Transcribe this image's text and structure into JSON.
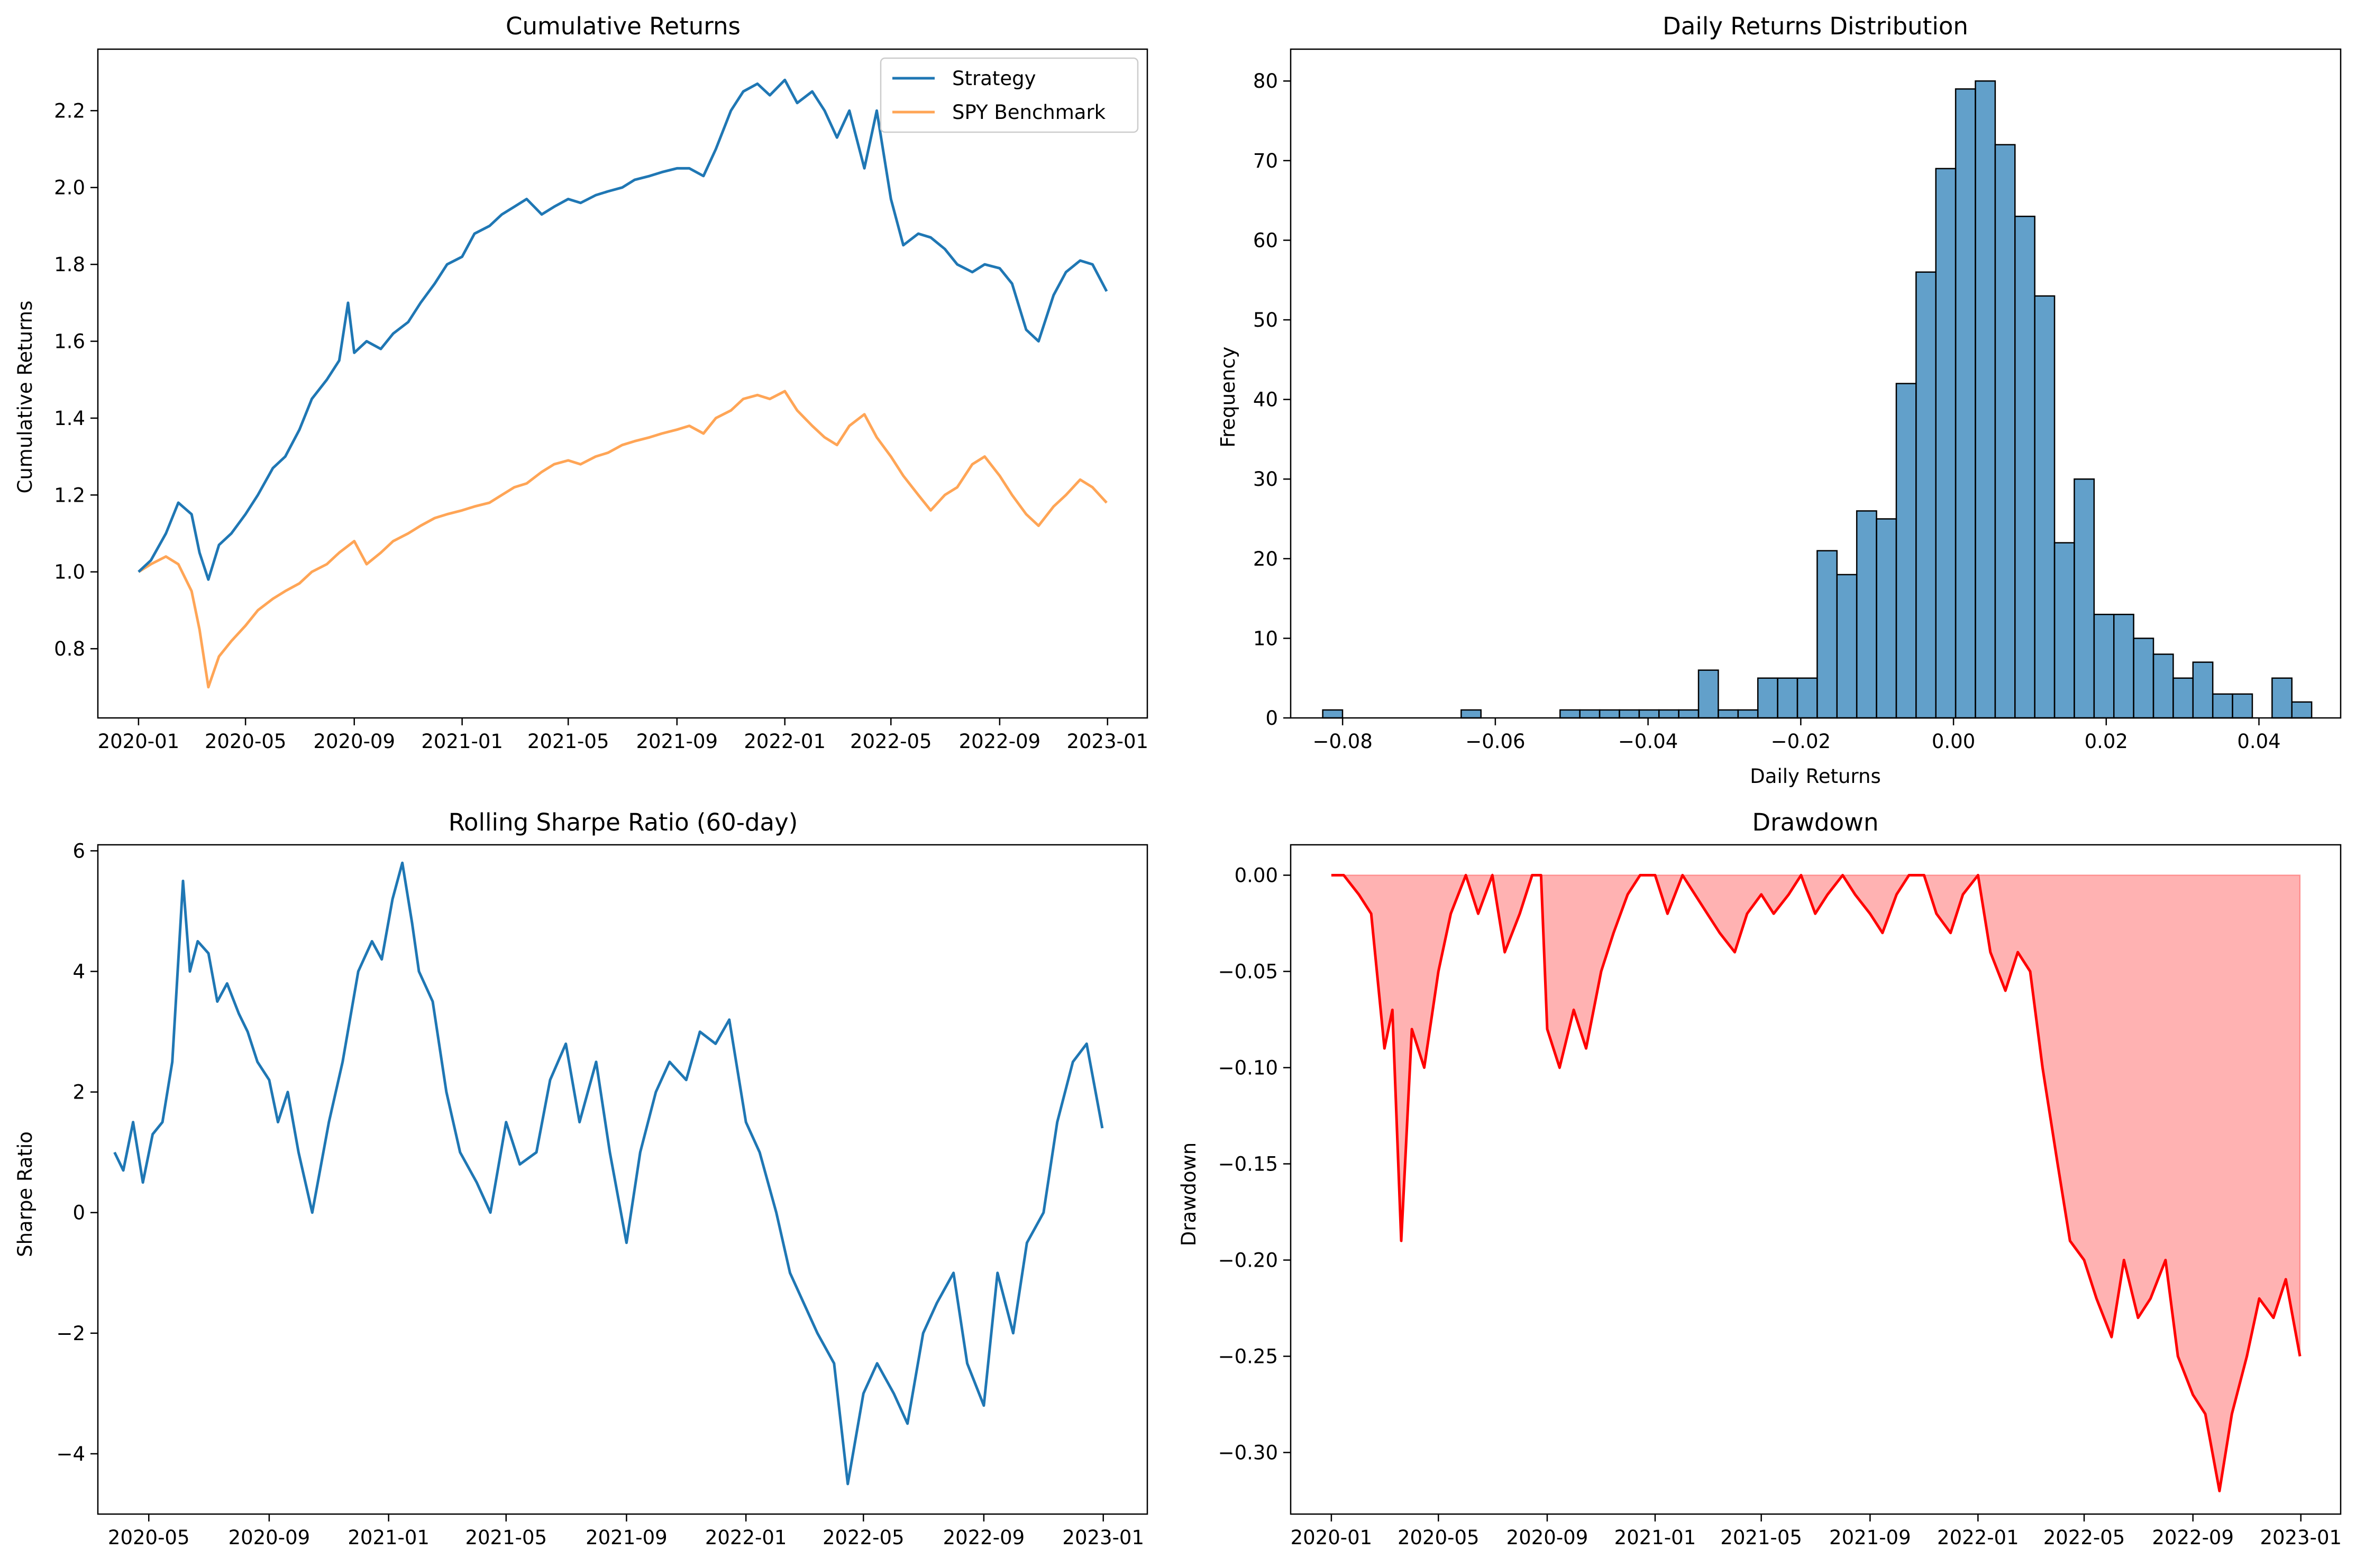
{
  "figure": {
    "background": "#ffffff"
  },
  "chart_data": [
    {
      "id": "cumulative",
      "type": "line",
      "title": "Cumulative Returns",
      "xlabel": "",
      "ylabel": "Cumulative Returns",
      "xlim": [
        "2019-11-16",
        "2023-02-15"
      ],
      "ylim": [
        0.62,
        2.36
      ],
      "x_ticks": [
        "2020-01",
        "2020-05",
        "2020-09",
        "2021-01",
        "2021-05",
        "2021-09",
        "2022-01",
        "2022-05",
        "2022-09",
        "2023-01"
      ],
      "y_ticks": [
        "0.8",
        "1.0",
        "1.2",
        "1.4",
        "1.6",
        "1.8",
        "2.0",
        "2.2"
      ],
      "legend": {
        "placement": "top-right"
      },
      "series": [
        {
          "name": "Strategy",
          "color": "#1f77b4",
          "x": [
            "2020-01-01",
            "2020-01-15",
            "2020-02-01",
            "2020-02-15",
            "2020-03-01",
            "2020-03-10",
            "2020-03-20",
            "2020-04-01",
            "2020-04-15",
            "2020-05-01",
            "2020-05-15",
            "2020-06-01",
            "2020-06-15",
            "2020-07-01",
            "2020-07-15",
            "2020-08-01",
            "2020-08-15",
            "2020-08-25",
            "2020-09-01",
            "2020-09-15",
            "2020-10-01",
            "2020-10-15",
            "2020-11-01",
            "2020-11-15",
            "2020-12-01",
            "2020-12-15",
            "2021-01-01",
            "2021-01-15",
            "2021-02-01",
            "2021-02-15",
            "2021-03-01",
            "2021-03-15",
            "2021-04-01",
            "2021-04-15",
            "2021-05-01",
            "2021-05-15",
            "2021-06-01",
            "2021-06-15",
            "2021-07-01",
            "2021-07-15",
            "2021-08-01",
            "2021-08-15",
            "2021-09-01",
            "2021-09-15",
            "2021-10-01",
            "2021-10-15",
            "2021-11-01",
            "2021-11-15",
            "2021-12-01",
            "2021-12-15",
            "2022-01-01",
            "2022-01-15",
            "2022-02-01",
            "2022-02-15",
            "2022-03-01",
            "2022-03-15",
            "2022-04-01",
            "2022-04-15",
            "2022-05-01",
            "2022-05-15",
            "2022-06-01",
            "2022-06-15",
            "2022-07-01",
            "2022-07-15",
            "2022-08-01",
            "2022-08-15",
            "2022-09-01",
            "2022-09-15",
            "2022-10-01",
            "2022-10-15",
            "2022-11-01",
            "2022-11-15",
            "2022-12-01",
            "2022-12-15",
            "2022-12-31"
          ],
          "values": [
            1.0,
            1.03,
            1.1,
            1.18,
            1.15,
            1.05,
            0.98,
            1.07,
            1.1,
            1.15,
            1.2,
            1.27,
            1.3,
            1.37,
            1.45,
            1.5,
            1.55,
            1.7,
            1.57,
            1.6,
            1.58,
            1.62,
            1.65,
            1.7,
            1.75,
            1.8,
            1.82,
            1.88,
            1.9,
            1.93,
            1.95,
            1.97,
            1.93,
            1.95,
            1.97,
            1.96,
            1.98,
            1.99,
            2.0,
            2.02,
            2.03,
            2.04,
            2.05,
            2.05,
            2.03,
            2.1,
            2.2,
            2.25,
            2.27,
            2.24,
            2.28,
            2.22,
            2.25,
            2.2,
            2.13,
            2.2,
            2.05,
            2.2,
            1.97,
            1.85,
            1.88,
            1.87,
            1.84,
            1.8,
            1.78,
            1.8,
            1.79,
            1.75,
            1.63,
            1.6,
            1.72,
            1.78,
            1.81,
            1.8,
            1.73
          ]
        },
        {
          "name": "SPY Benchmark",
          "color": "#ff7f0e",
          "x": [
            "2020-01-01",
            "2020-01-15",
            "2020-02-01",
            "2020-02-15",
            "2020-03-01",
            "2020-03-10",
            "2020-03-20",
            "2020-04-01",
            "2020-04-15",
            "2020-05-01",
            "2020-05-15",
            "2020-06-01",
            "2020-06-15",
            "2020-07-01",
            "2020-07-15",
            "2020-08-01",
            "2020-08-15",
            "2020-09-01",
            "2020-09-15",
            "2020-10-01",
            "2020-10-15",
            "2020-11-01",
            "2020-11-15",
            "2020-12-01",
            "2020-12-15",
            "2021-01-01",
            "2021-01-15",
            "2021-02-01",
            "2021-02-15",
            "2021-03-01",
            "2021-03-15",
            "2021-04-01",
            "2021-04-15",
            "2021-05-01",
            "2021-05-15",
            "2021-06-01",
            "2021-06-15",
            "2021-07-01",
            "2021-07-15",
            "2021-08-01",
            "2021-08-15",
            "2021-09-01",
            "2021-09-15",
            "2021-10-01",
            "2021-10-15",
            "2021-11-01",
            "2021-11-15",
            "2021-12-01",
            "2021-12-15",
            "2022-01-01",
            "2022-01-15",
            "2022-02-01",
            "2022-02-15",
            "2022-03-01",
            "2022-03-15",
            "2022-04-01",
            "2022-04-15",
            "2022-05-01",
            "2022-05-15",
            "2022-06-01",
            "2022-06-15",
            "2022-07-01",
            "2022-07-15",
            "2022-08-01",
            "2022-08-15",
            "2022-09-01",
            "2022-09-15",
            "2022-10-01",
            "2022-10-15",
            "2022-11-01",
            "2022-11-15",
            "2022-12-01",
            "2022-12-15",
            "2022-12-31"
          ],
          "values": [
            1.0,
            1.02,
            1.04,
            1.02,
            0.95,
            0.85,
            0.7,
            0.78,
            0.82,
            0.86,
            0.9,
            0.93,
            0.95,
            0.97,
            1.0,
            1.02,
            1.05,
            1.08,
            1.02,
            1.05,
            1.08,
            1.1,
            1.12,
            1.14,
            1.15,
            1.16,
            1.17,
            1.18,
            1.2,
            1.22,
            1.23,
            1.26,
            1.28,
            1.29,
            1.28,
            1.3,
            1.31,
            1.33,
            1.34,
            1.35,
            1.36,
            1.37,
            1.38,
            1.36,
            1.4,
            1.42,
            1.45,
            1.46,
            1.45,
            1.47,
            1.42,
            1.38,
            1.35,
            1.33,
            1.38,
            1.41,
            1.35,
            1.3,
            1.25,
            1.2,
            1.16,
            1.2,
            1.22,
            1.28,
            1.3,
            1.25,
            1.2,
            1.15,
            1.12,
            1.17,
            1.2,
            1.24,
            1.22,
            1.18
          ]
        }
      ]
    },
    {
      "id": "distribution",
      "type": "bar",
      "title": "Daily Returns Distribution",
      "xlabel": "Daily Returns",
      "ylabel": "Frequency",
      "xlim": [
        -0.0868,
        0.0507
      ],
      "ylim": [
        0,
        84
      ],
      "x_ticks": [
        "−0.08",
        "−0.06",
        "−0.04",
        "−0.02",
        "0.00",
        "0.02",
        "0.04"
      ],
      "y_ticks": [
        "0",
        "10",
        "20",
        "30",
        "40",
        "50",
        "60",
        "70",
        "80"
      ],
      "bar_color": "#1f77b4",
      "bin_start": -0.0826,
      "bin_width": 0.00259,
      "values": [
        1,
        0,
        0,
        0,
        0,
        0,
        0,
        1,
        0,
        0,
        0,
        0,
        1,
        1,
        1,
        1,
        1,
        1,
        1,
        6,
        1,
        1,
        5,
        5,
        5,
        21,
        18,
        26,
        25,
        42,
        56,
        69,
        79,
        80,
        72,
        63,
        53,
        22,
        30,
        13,
        13,
        10,
        8,
        5,
        7,
        3,
        3,
        0,
        5,
        2
      ]
    },
    {
      "id": "sharpe",
      "type": "line",
      "title": "Rolling Sharpe Ratio (60-day)",
      "xlabel": "",
      "ylabel": "Sharpe Ratio",
      "xlim": [
        "2020-03-10",
        "2023-02-15"
      ],
      "ylim": [
        -5.0,
        6.1
      ],
      "x_ticks": [
        "2020-05",
        "2020-09",
        "2021-01",
        "2021-05",
        "2021-09",
        "2022-01",
        "2022-05",
        "2022-09",
        "2023-01"
      ],
      "y_ticks": [
        "−4",
        "−2",
        "0",
        "2",
        "4",
        "6"
      ],
      "series": [
        {
          "color": "#1f77b4",
          "x": [
            "2020-03-27",
            "2020-04-05",
            "2020-04-15",
            "2020-04-25",
            "2020-05-05",
            "2020-05-15",
            "2020-05-25",
            "2020-06-05",
            "2020-06-12",
            "2020-06-20",
            "2020-07-01",
            "2020-07-10",
            "2020-07-20",
            "2020-08-01",
            "2020-08-10",
            "2020-08-20",
            "2020-09-01",
            "2020-09-10",
            "2020-09-20",
            "2020-10-01",
            "2020-10-15",
            "2020-11-01",
            "2020-11-15",
            "2020-12-01",
            "2020-12-15",
            "2020-12-25",
            "2021-01-05",
            "2021-01-15",
            "2021-01-25",
            "2021-02-01",
            "2021-02-15",
            "2021-03-01",
            "2021-03-15",
            "2021-04-01",
            "2021-04-15",
            "2021-05-01",
            "2021-05-15",
            "2021-06-01",
            "2021-06-15",
            "2021-07-01",
            "2021-07-15",
            "2021-08-01",
            "2021-08-15",
            "2021-09-01",
            "2021-09-15",
            "2021-10-01",
            "2021-10-15",
            "2021-11-01",
            "2021-11-15",
            "2021-12-01",
            "2021-12-15",
            "2022-01-01",
            "2022-01-15",
            "2022-02-01",
            "2022-02-15",
            "2022-03-01",
            "2022-03-15",
            "2022-04-01",
            "2022-04-15",
            "2022-05-01",
            "2022-05-15",
            "2022-06-01",
            "2022-06-15",
            "2022-07-01",
            "2022-07-15",
            "2022-08-01",
            "2022-08-15",
            "2022-09-01",
            "2022-09-15",
            "2022-10-01",
            "2022-10-15",
            "2022-11-01",
            "2022-11-15",
            "2022-12-01",
            "2022-12-15",
            "2022-12-31"
          ],
          "values": [
            1.0,
            0.7,
            1.5,
            0.5,
            1.3,
            1.5,
            2.5,
            5.5,
            4.0,
            4.5,
            4.3,
            3.5,
            3.8,
            3.3,
            3.0,
            2.5,
            2.2,
            1.5,
            2.0,
            1.0,
            0.0,
            1.5,
            2.5,
            4.0,
            4.5,
            4.2,
            5.2,
            5.8,
            4.8,
            4.0,
            3.5,
            2.0,
            1.0,
            0.5,
            0.0,
            1.5,
            0.8,
            1.0,
            2.2,
            2.8,
            1.5,
            2.5,
            1.0,
            -0.5,
            1.0,
            2.0,
            2.5,
            2.2,
            3.0,
            2.8,
            3.2,
            1.5,
            1.0,
            0.0,
            -1.0,
            -1.5,
            -2.0,
            -2.5,
            -4.5,
            -3.0,
            -2.5,
            -3.0,
            -3.5,
            -2.0,
            -1.5,
            -1.0,
            -2.5,
            -3.2,
            -1.0,
            -2.0,
            -0.5,
            0.0,
            1.5,
            2.5,
            2.8,
            1.4
          ]
        }
      ]
    },
    {
      "id": "drawdown",
      "type": "area",
      "title": "Drawdown",
      "xlabel": "",
      "ylabel": "Drawdown",
      "xlim": [
        "2019-11-16",
        "2023-02-15"
      ],
      "ylim": [
        -0.332,
        0.0158
      ],
      "x_ticks": [
        "2020-01",
        "2020-05",
        "2020-09",
        "2021-01",
        "2021-05",
        "2021-09",
        "2022-01",
        "2022-05",
        "2022-09",
        "2023-01"
      ],
      "y_ticks": [
        "0.00",
        "−0.05",
        "−0.10",
        "−0.15",
        "−0.20",
        "−0.25",
        "−0.30"
      ],
      "line_color": "#ff0000",
      "fill_color": "#ff0000",
      "series": [
        {
          "x": [
            "2020-01-01",
            "2020-01-15",
            "2020-02-01",
            "2020-02-15",
            "2020-03-01",
            "2020-03-10",
            "2020-03-20",
            "2020-04-01",
            "2020-04-15",
            "2020-05-01",
            "2020-05-15",
            "2020-06-01",
            "2020-06-15",
            "2020-07-01",
            "2020-07-15",
            "2020-08-01",
            "2020-08-15",
            "2020-08-25",
            "2020-09-01",
            "2020-09-15",
            "2020-10-01",
            "2020-10-15",
            "2020-11-01",
            "2020-11-15",
            "2020-12-01",
            "2020-12-15",
            "2021-01-01",
            "2021-01-15",
            "2021-02-01",
            "2021-02-15",
            "2021-03-01",
            "2021-03-15",
            "2021-04-01",
            "2021-04-15",
            "2021-05-01",
            "2021-05-15",
            "2021-06-01",
            "2021-06-15",
            "2021-07-01",
            "2021-07-15",
            "2021-08-01",
            "2021-08-15",
            "2021-09-01",
            "2021-09-15",
            "2021-10-01",
            "2021-10-15",
            "2021-11-01",
            "2021-11-15",
            "2021-12-01",
            "2021-12-15",
            "2022-01-01",
            "2022-01-15",
            "2022-02-01",
            "2022-02-15",
            "2022-03-01",
            "2022-03-15",
            "2022-04-01",
            "2022-04-15",
            "2022-05-01",
            "2022-05-15",
            "2022-06-01",
            "2022-06-15",
            "2022-07-01",
            "2022-07-15",
            "2022-08-01",
            "2022-08-15",
            "2022-09-01",
            "2022-09-15",
            "2022-10-01",
            "2022-10-15",
            "2022-11-01",
            "2022-11-15",
            "2022-12-01",
            "2022-12-15",
            "2022-12-31"
          ],
          "values": [
            0.0,
            0.0,
            -0.01,
            -0.02,
            -0.09,
            -0.07,
            -0.19,
            -0.08,
            -0.1,
            -0.05,
            -0.02,
            0.0,
            -0.02,
            0.0,
            -0.04,
            -0.02,
            0.0,
            0.0,
            -0.08,
            -0.1,
            -0.07,
            -0.09,
            -0.05,
            -0.03,
            -0.01,
            0.0,
            0.0,
            -0.02,
            0.0,
            -0.01,
            -0.02,
            -0.03,
            -0.04,
            -0.02,
            -0.01,
            -0.02,
            -0.01,
            0.0,
            -0.02,
            -0.01,
            0.0,
            -0.01,
            -0.02,
            -0.03,
            -0.01,
            0.0,
            0.0,
            -0.02,
            -0.03,
            -0.01,
            0.0,
            -0.04,
            -0.06,
            -0.04,
            -0.05,
            -0.1,
            -0.15,
            -0.19,
            -0.2,
            -0.22,
            -0.24,
            -0.2,
            -0.23,
            -0.22,
            -0.2,
            -0.25,
            -0.27,
            -0.28,
            -0.32,
            -0.28,
            -0.25,
            -0.22,
            -0.23,
            -0.21,
            -0.25
          ]
        }
      ]
    }
  ]
}
